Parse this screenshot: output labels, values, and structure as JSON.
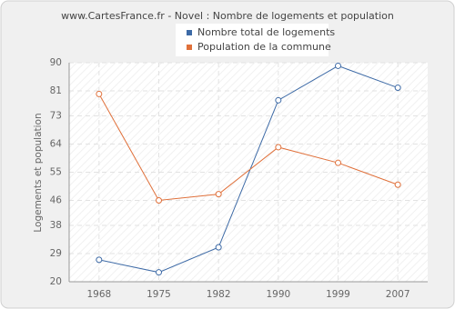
{
  "chart_data": {
    "type": "line",
    "title": "www.CartesFrance.fr - Novel : Nombre de logements et population",
    "y_label": "Logements et population",
    "categories": [
      "1968",
      "1975",
      "1982",
      "1990",
      "1999",
      "2007"
    ],
    "series": [
      {
        "name": "Nombre total de logements",
        "color": "#3d6aa6",
        "values": [
          27,
          23,
          31,
          78,
          89,
          82
        ]
      },
      {
        "name": "Population de la commune",
        "color": "#e0703a",
        "values": [
          80,
          46,
          48,
          63,
          58,
          51
        ]
      }
    ],
    "ylim": [
      20,
      90
    ],
    "yticks": [
      20,
      29,
      38,
      46,
      55,
      64,
      73,
      81,
      90
    ],
    "grid": true
  }
}
